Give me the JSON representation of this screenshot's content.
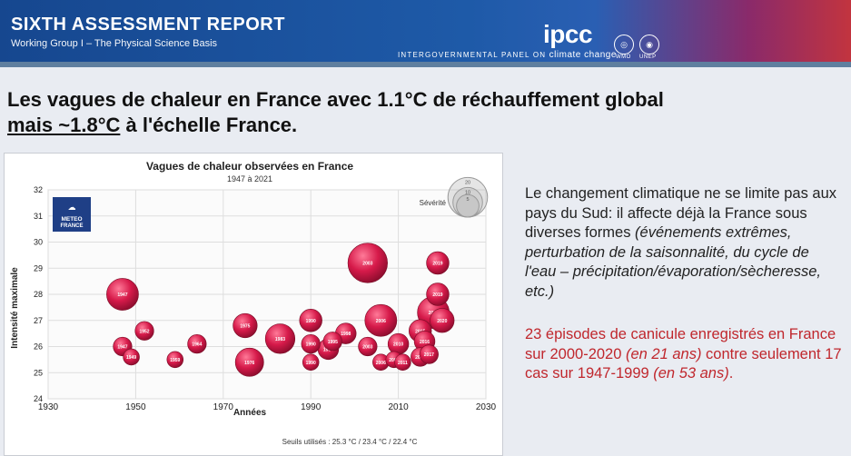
{
  "header": {
    "report_title": "SIXTH ASSESSMENT REPORT",
    "working_group": "Working Group I – The Physical Science Basis",
    "logo_text": "ipcc",
    "panel_name": "INTERGOVERNMENTAL PANEL ON",
    "panel_name_end": "climate change",
    "wmo_caption": "WMO",
    "unep_caption": "UNEP"
  },
  "headline": {
    "line1": "Les vagues de chaleur en France avec 1.1°C de réchauffement global",
    "line2_underlined": "mais ~1.8°C",
    "line2_rest": " à l'échelle France."
  },
  "side": {
    "para1_normal": "Le changement climatique ne se limite pas aux pays du Sud: il affecte déjà la France sous diverses formes",
    "para1_italic": "(événements extrêmes, perturbation de la saisonnalité, du cycle de l'eau – précipitation/évaporation/sècheresse, etc.)",
    "para2_a": "23 épisodes de canicule enregistrés en France sur 2000-2020 ",
    "para2_b": "(en 21 ans)",
    "para2_c": " contre seulement 17 cas sur 1947-1999 ",
    "para2_d": "(en 53 ans)",
    "para2_e": "."
  },
  "colors": {
    "accent_red": "#c0272d",
    "bubble": "#d61a4a",
    "header_blue": "#1e5aa8"
  },
  "chart_data": {
    "type": "scatter",
    "title": "Vagues de chaleur observées en France",
    "subtitle": "1947 à 2021",
    "xlabel": "Années",
    "ylabel": "Intensité maximale",
    "xlim": [
      1930,
      2030
    ],
    "ylim": [
      24,
      32
    ],
    "xticks": [
      1930,
      1950,
      1970,
      1990,
      2010,
      2030
    ],
    "yticks": [
      24,
      25,
      26,
      27,
      28,
      29,
      30,
      31,
      32
    ],
    "grid": true,
    "logo_line1": "METEO",
    "logo_line2": "FRANCE",
    "legend_title": "Sévérité",
    "legend_values": [
      20,
      10,
      5
    ],
    "footer": "Seuils utilisés : 25.3 °C / 23.4 °C / 22.4 °C",
    "points": [
      {
        "year": 1947,
        "intensity": 28.0,
        "severity": 12,
        "label": "1947"
      },
      {
        "year": 1947,
        "intensity": 26.0,
        "severity": 3,
        "label": "1947"
      },
      {
        "year": 1949,
        "intensity": 25.6,
        "severity": 2,
        "label": "1949"
      },
      {
        "year": 1952,
        "intensity": 26.6,
        "severity": 3,
        "label": "1952"
      },
      {
        "year": 1959,
        "intensity": 25.5,
        "severity": 2,
        "label": "1959"
      },
      {
        "year": 1964,
        "intensity": 26.1,
        "severity": 3,
        "label": "1964"
      },
      {
        "year": 1975,
        "intensity": 26.8,
        "severity": 6,
        "label": "1975"
      },
      {
        "year": 1976,
        "intensity": 25.4,
        "severity": 9,
        "label": "1976"
      },
      {
        "year": 1983,
        "intensity": 26.3,
        "severity": 10,
        "label": "1983"
      },
      {
        "year": 1990,
        "intensity": 26.1,
        "severity": 3,
        "label": "1990"
      },
      {
        "year": 1990,
        "intensity": 27.0,
        "severity": 5,
        "label": "1990"
      },
      {
        "year": 1990,
        "intensity": 25.4,
        "severity": 2,
        "label": "1990"
      },
      {
        "year": 1994,
        "intensity": 25.9,
        "severity": 4,
        "label": "1994"
      },
      {
        "year": 1995,
        "intensity": 26.2,
        "severity": 3,
        "label": "1995"
      },
      {
        "year": 1998,
        "intensity": 26.5,
        "severity": 4,
        "label": "1998"
      },
      {
        "year": 2003,
        "intensity": 29.2,
        "severity": 20,
        "label": "2003"
      },
      {
        "year": 2006,
        "intensity": 27.0,
        "severity": 12,
        "label": "2006"
      },
      {
        "year": 2003,
        "intensity": 26.0,
        "severity": 3,
        "label": "2003"
      },
      {
        "year": 2006,
        "intensity": 25.4,
        "severity": 2,
        "label": "2006"
      },
      {
        "year": 2009,
        "intensity": 25.5,
        "severity": 2,
        "label": "2009"
      },
      {
        "year": 2010,
        "intensity": 26.1,
        "severity": 4,
        "label": "2010"
      },
      {
        "year": 2011,
        "intensity": 25.4,
        "severity": 2,
        "label": "2011"
      },
      {
        "year": 2015,
        "intensity": 25.6,
        "severity": 3,
        "label": "2015"
      },
      {
        "year": 2015,
        "intensity": 26.6,
        "severity": 5,
        "label": "2015"
      },
      {
        "year": 2016,
        "intensity": 26.2,
        "severity": 4,
        "label": "2016"
      },
      {
        "year": 2017,
        "intensity": 25.7,
        "severity": 3,
        "label": "2017"
      },
      {
        "year": 2018,
        "intensity": 27.3,
        "severity": 12,
        "label": "2018"
      },
      {
        "year": 2019,
        "intensity": 29.2,
        "severity": 5,
        "label": "2019"
      },
      {
        "year": 2019,
        "intensity": 28.0,
        "severity": 5,
        "label": "2019"
      },
      {
        "year": 2020,
        "intensity": 27.0,
        "severity": 6,
        "label": "2020"
      }
    ]
  }
}
